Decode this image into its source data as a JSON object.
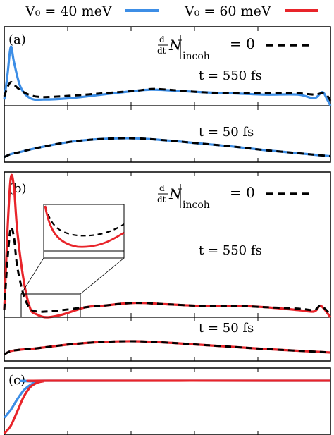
{
  "legend": {
    "items": [
      {
        "label": "V₀ = 40 meV",
        "color": "#3d8ee6"
      },
      {
        "label": "V₀ = 60 meV",
        "color": "#e8242a"
      }
    ],
    "dashed_label_prefix": "d/dt N",
    "dashed_label_sub": "incoh",
    "dashed_label_suffix": "= 0"
  },
  "chart_data": [
    {
      "type": "line",
      "panel": "(a)",
      "subplots": [
        {
          "annotation": "t = 550 fs",
          "series": [
            {
              "name": "V₀ = 40 meV",
              "color": "#3d8ee6",
              "style": "solid",
              "x": [
                0,
                0.01,
                0.02,
                0.03,
                0.05,
                0.08,
                0.12,
                0.2,
                0.3,
                0.4,
                0.45,
                0.5,
                0.6,
                0.7,
                0.8,
                0.9,
                0.95,
                0.975,
                0.99,
                1.0
              ],
              "y": [
                0.1,
                0.5,
                0.95,
                0.7,
                0.3,
                0.12,
                0.1,
                0.12,
                0.18,
                0.24,
                0.26,
                0.25,
                0.22,
                0.2,
                0.18,
                0.18,
                0.12,
                0.22,
                0.1,
                0.0
              ]
            },
            {
              "name": "",
              "color": "#000000",
              "style": "dashed",
              "x": [
                0,
                0.01,
                0.02,
                0.03,
                0.05,
                0.08,
                0.12,
                0.2,
                0.3,
                0.4,
                0.45,
                0.5,
                0.6,
                0.7,
                0.8,
                0.9,
                0.95,
                0.975,
                0.99,
                1.0
              ],
              "y": [
                0.15,
                0.3,
                0.38,
                0.34,
                0.25,
                0.17,
                0.14,
                0.16,
                0.2,
                0.24,
                0.27,
                0.26,
                0.22,
                0.2,
                0.2,
                0.2,
                0.18,
                0.2,
                0.16,
                0.08
              ]
            }
          ]
        },
        {
          "annotation": "t = 50 fs",
          "series": [
            {
              "name": "V₀ = 40 meV",
              "color": "#3d8ee6",
              "style": "solid",
              "x": [
                0,
                0.02,
                0.05,
                0.1,
                0.2,
                0.3,
                0.4,
                0.5,
                0.6,
                0.7,
                0.8,
                0.9,
                1.0
              ],
              "y": [
                0.05,
                0.15,
                0.22,
                0.35,
                0.55,
                0.65,
                0.67,
                0.6,
                0.5,
                0.4,
                0.28,
                0.18,
                0.08
              ]
            },
            {
              "name": "",
              "color": "#000000",
              "style": "dashed",
              "x": [
                0,
                0.02,
                0.05,
                0.1,
                0.2,
                0.3,
                0.4,
                0.5,
                0.6,
                0.7,
                0.8,
                0.9,
                1.0
              ],
              "y": [
                0.05,
                0.15,
                0.22,
                0.35,
                0.55,
                0.65,
                0.67,
                0.6,
                0.5,
                0.4,
                0.28,
                0.18,
                0.08
              ]
            }
          ]
        }
      ]
    },
    {
      "type": "line",
      "panel": "(b)",
      "subplots": [
        {
          "annotation": "t = 550 fs",
          "series": [
            {
              "name": "V₀ = 60 meV",
              "color": "#e8242a",
              "style": "solid",
              "x": [
                0,
                0.01,
                0.02,
                0.03,
                0.04,
                0.06,
                0.08,
                0.1,
                0.13,
                0.18,
                0.25,
                0.3,
                0.4,
                0.5,
                0.6,
                0.7,
                0.8,
                0.9,
                0.95,
                0.97,
                1.0
              ],
              "y": [
                0.05,
                0.6,
                0.97,
                0.9,
                0.6,
                0.25,
                0.06,
                0.02,
                0.0,
                0.02,
                0.07,
                0.08,
                0.1,
                0.09,
                0.08,
                0.08,
                0.07,
                0.05,
                0.04,
                0.08,
                0.0
              ]
            },
            {
              "name": "",
              "color": "#000000",
              "style": "dashed",
              "x": [
                0,
                0.01,
                0.02,
                0.03,
                0.04,
                0.06,
                0.08,
                0.1,
                0.13,
                0.18,
                0.25,
                0.3,
                0.4,
                0.5,
                0.6,
                0.7,
                0.8,
                0.9,
                0.95,
                0.97,
                1.0
              ],
              "y": [
                0.05,
                0.4,
                0.62,
                0.55,
                0.35,
                0.15,
                0.06,
                0.04,
                0.04,
                0.05,
                0.07,
                0.08,
                0.1,
                0.09,
                0.08,
                0.08,
                0.07,
                0.06,
                0.05,
                0.08,
                0.02
              ]
            }
          ]
        },
        {
          "annotation": "t = 50 fs",
          "series": [
            {
              "name": "V₀ = 60 meV",
              "color": "#e8242a",
              "style": "solid",
              "x": [
                0,
                0.02,
                0.05,
                0.1,
                0.2,
                0.3,
                0.4,
                0.5,
                0.6,
                0.7,
                0.8,
                0.9,
                1.0
              ],
              "y": [
                0.05,
                0.14,
                0.18,
                0.22,
                0.33,
                0.4,
                0.42,
                0.38,
                0.32,
                0.26,
                0.2,
                0.15,
                0.1
              ]
            },
            {
              "name": "",
              "color": "#000000",
              "style": "dashed",
              "x": [
                0,
                0.02,
                0.05,
                0.1,
                0.2,
                0.3,
                0.4,
                0.5,
                0.6,
                0.7,
                0.8,
                0.9,
                1.0
              ],
              "y": [
                0.05,
                0.14,
                0.18,
                0.22,
                0.33,
                0.4,
                0.42,
                0.38,
                0.32,
                0.26,
                0.2,
                0.15,
                0.1
              ]
            }
          ]
        }
      ]
    },
    {
      "type": "line",
      "panel": "(c)",
      "series": [
        {
          "name": "V₀ = 40 meV",
          "color": "#3d8ee6",
          "style": "solid",
          "x": [
            0,
            0.02,
            0.04,
            0.06,
            0.08,
            0.1,
            0.12,
            1.0
          ],
          "y": [
            0.3,
            0.45,
            0.65,
            0.82,
            0.92,
            0.98,
            1.0,
            1.0
          ]
        },
        {
          "name": "V₀ = 60 meV",
          "color": "#e8242a",
          "style": "solid",
          "x": [
            0,
            0.02,
            0.04,
            0.06,
            0.08,
            0.1,
            0.12,
            0.14,
            1.0
          ],
          "y": [
            0.0,
            0.15,
            0.42,
            0.7,
            0.88,
            0.96,
            0.99,
            1.0,
            1.0
          ]
        }
      ]
    }
  ]
}
